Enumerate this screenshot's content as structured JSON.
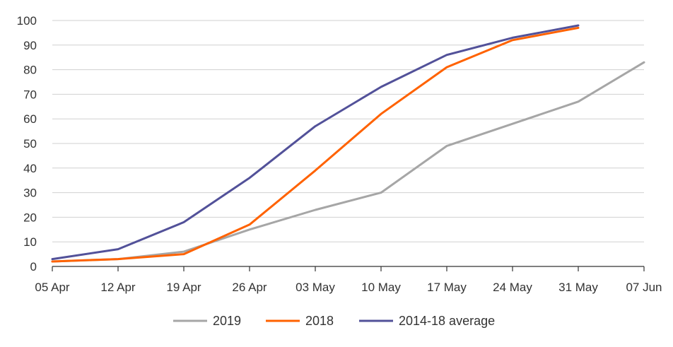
{
  "chart_data": {
    "type": "line",
    "categories": [
      "05 Apr",
      "12 Apr",
      "19 Apr",
      "26 Apr",
      "03 May",
      "10 May",
      "17 May",
      "24 May",
      "31 May",
      "07 Jun"
    ],
    "ylim": [
      0,
      100
    ],
    "yticks": [
      0,
      10,
      20,
      30,
      40,
      50,
      60,
      70,
      80,
      90,
      100
    ],
    "grid": true,
    "legend_position": "bottom",
    "series": [
      {
        "name": "2019",
        "color": "#a6a6a6",
        "values": [
          2,
          3,
          6,
          15,
          23,
          30,
          49,
          58,
          67,
          83
        ]
      },
      {
        "name": "2018",
        "color": "#ff6200",
        "values": [
          2,
          3,
          5,
          17,
          39,
          62,
          81,
          92,
          97,
          null
        ]
      },
      {
        "name": "2014-18 average",
        "color": "#525199",
        "values": [
          3,
          7,
          18,
          36,
          57,
          73,
          86,
          93,
          98,
          null
        ]
      }
    ]
  }
}
